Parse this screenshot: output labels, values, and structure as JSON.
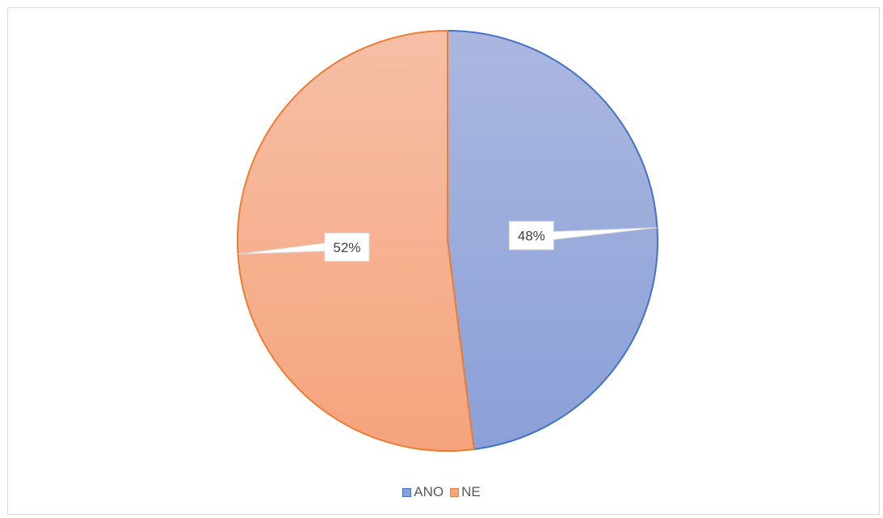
{
  "chart_data": {
    "type": "pie",
    "categories": [
      "ANO",
      "NE"
    ],
    "values": [
      48,
      52
    ],
    "data_labels": [
      "48%",
      "52%"
    ],
    "colors": {
      "ANO": {
        "fill_top": "#abb7e0",
        "fill_bottom": "#8aa0d8",
        "stroke": "#4472c4"
      },
      "NE": {
        "fill_top": "#f6bfa6",
        "fill_bottom": "#f5a47c",
        "stroke": "#ed7d31"
      }
    },
    "start_angle_deg": 0,
    "direction": "clockwise",
    "legend_placement": "bottom"
  }
}
